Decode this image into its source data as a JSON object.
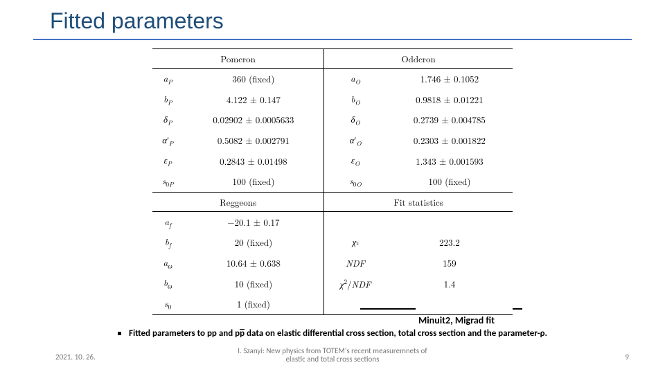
{
  "title": "Fitted parameters",
  "table": {
    "col_headers": [
      "Pomeron",
      "Odderon"
    ],
    "sec_headers": [
      "Reggeons",
      "Fit statistics"
    ],
    "rows_top": [
      {
        "l_sym_html": "<span class='sym'>a</span><span class='sub'>P</span>",
        "l_val": "360 (fixed)",
        "r_sym_html": "<span class='sym'>a</span><span class='sub'>O</span>",
        "r_val": "1.746 ± 0.1052"
      },
      {
        "l_sym_html": "<span class='sym'>b</span><span class='sub'>P</span>",
        "l_val": "4.122 ± 0.147",
        "r_sym_html": "<span class='sym'>b</span><span class='sub'>O</span>",
        "r_val": "0.9818 ± 0.01221"
      },
      {
        "l_sym_html": "<span class='sym'>δ</span><span class='sub'>P</span>",
        "l_val": "0.02902 ± 0.0005633",
        "r_sym_html": "<span class='sym'>δ</span><span class='sub'>O</span>",
        "r_val": "0.2739 ± 0.004785"
      },
      {
        "l_sym_html": "<span class='sym'>α</span><span class='prime'>′</span><span class='sub'>P</span>",
        "l_val": "0.5082 ± 0.002791",
        "r_sym_html": "<span class='sym'>α</span><span class='prime'>′</span><span class='sub'>O</span>",
        "r_val": "0.2303 ± 0.001822"
      },
      {
        "l_sym_html": "<span class='sym'>ε</span><span class='sub'>P</span>",
        "l_val": "0.2843 ± 0.01498",
        "r_sym_html": "<span class='sym'>ε</span><span class='sub'>O</span>",
        "r_val": "1.343 ± 0.001593"
      },
      {
        "l_sym_html": "<span class='sym'>s</span><span class='subn'>0</span><span class='sub'>P</span>",
        "l_val": "100 (fixed)",
        "r_sym_html": "<span class='sym'>s</span><span class='subn'>0</span><span class='sub'>O</span>",
        "r_val": "100 (fixed)"
      }
    ],
    "rows_bot": [
      {
        "l_sym_html": "<span class='sym'>a</span><span class='sub'>f</span>",
        "l_val": "−20.1 ± 0.17",
        "r_sym_html": "",
        "r_val": ""
      },
      {
        "l_sym_html": "<span class='sym'>b</span><span class='sub'>f</span>",
        "l_val": "20 (fixed)",
        "r_sym_html": "<span class='sym'>χ</span><span class='subn'><span class='sup'>2</span></span>",
        "r_val": "223.2"
      },
      {
        "l_sym_html": "<span class='sym'>a</span><span class='sub'>ω</span>",
        "l_val": "10.64 ± 0.638",
        "r_sym_html": "<span class='sym'>NDF</span>",
        "r_val": "159"
      },
      {
        "l_sym_html": "<span class='sym'>b</span><span class='sub'>ω</span>",
        "l_val": "10 (fixed)",
        "r_sym_html": "<span class='sym'>χ</span><span class='sup'>2</span>/<span class='sym'>NDF</span>",
        "r_val": "1.4"
      },
      {
        "l_sym_html": "<span class='sym'>s</span><span class='subn'>0</span>",
        "l_val": "1 (fixed)",
        "r_sym_html": "",
        "r_val": ""
      }
    ]
  },
  "annotation": "Minuit2, Migrad fit",
  "caption_html": "<b>Fitted parameters to pp and p<span class='pbar'>p</span> data on elastic differential cross section, total cross section and the parameter-ρ.</b>",
  "footer": {
    "date": "2021. 10. 26.",
    "center": "I. Szanyi: New physics from TOTEM's recent measuremnets of\nelastic and total cross sections",
    "page": "9"
  },
  "colors": {
    "title_color": "#1f4e79",
    "rule_color": "#4472c4",
    "footer_color": "#777777",
    "background": "#ffffff",
    "text": "#000000"
  }
}
